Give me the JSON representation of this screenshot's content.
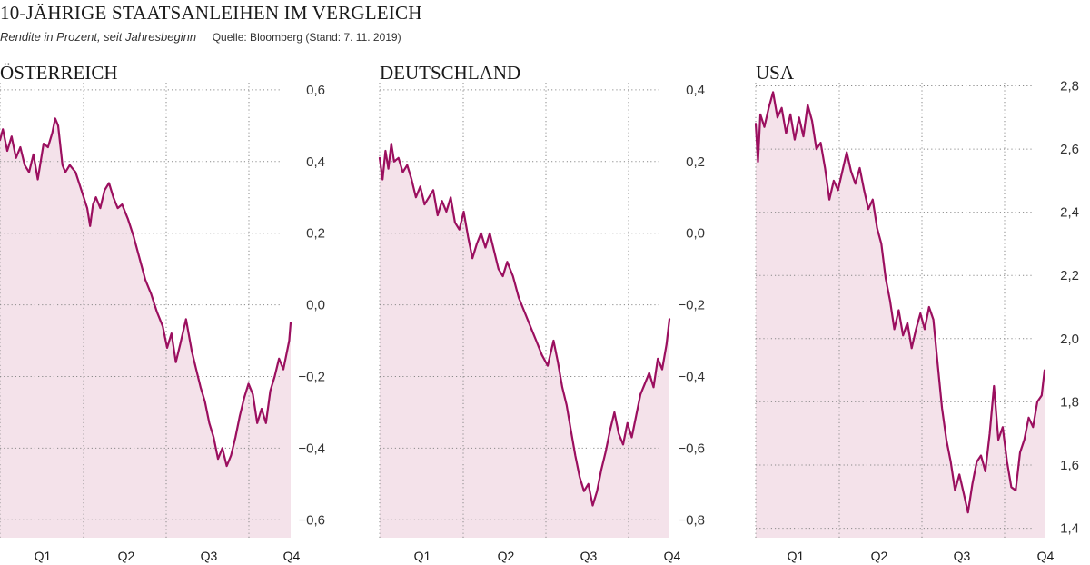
{
  "header": {
    "title": "10-JÄHRIGE STAATSANLEIHEN IM VERGLEICH",
    "subtitle": "Rendite in Prozent, seit Jahresbeginn",
    "source": "Quelle: Bloomberg (Stand: 7. 11. 2019)"
  },
  "colors": {
    "line": "#9b0f5f",
    "fill": "#f4e2ea",
    "grid": "#8a8a8a"
  },
  "chart_data": [
    {
      "type": "area",
      "title": "ÖSTERREICH",
      "xlabel": "",
      "ylabel": "Rendite in Prozent",
      "x_ticks": [
        "Q1",
        "Q2",
        "Q3",
        "Q4"
      ],
      "y_ticks": [
        "0,6",
        "0,4",
        "0,2",
        "0,0",
        "−0,2",
        "−0,4",
        "−0,6"
      ],
      "y_tick_values": [
        0.6,
        0.4,
        0.2,
        0.0,
        -0.2,
        -0.4,
        -0.6
      ],
      "ylim": [
        -0.65,
        0.62
      ],
      "xlim": [
        0,
        1
      ],
      "grid": true,
      "series": [
        {
          "name": "Österreich",
          "x": [
            0.0,
            0.01,
            0.025,
            0.04,
            0.055,
            0.07,
            0.085,
            0.1,
            0.115,
            0.13,
            0.15,
            0.165,
            0.18,
            0.19,
            0.2,
            0.215,
            0.225,
            0.24,
            0.26,
            0.28,
            0.3,
            0.31,
            0.32,
            0.33,
            0.345,
            0.36,
            0.375,
            0.39,
            0.405,
            0.42,
            0.44,
            0.46,
            0.48,
            0.5,
            0.52,
            0.54,
            0.56,
            0.575,
            0.59,
            0.605,
            0.62,
            0.64,
            0.66,
            0.675,
            0.69,
            0.705,
            0.72,
            0.735,
            0.75,
            0.765,
            0.78,
            0.795,
            0.81,
            0.825,
            0.84,
            0.855,
            0.87,
            0.885,
            0.9,
            0.915,
            0.93,
            0.945,
            0.96,
            0.975,
            0.985,
            0.995,
            1.0
          ],
          "values": [
            0.46,
            0.49,
            0.43,
            0.47,
            0.41,
            0.44,
            0.39,
            0.37,
            0.42,
            0.35,
            0.45,
            0.44,
            0.48,
            0.52,
            0.5,
            0.39,
            0.37,
            0.39,
            0.37,
            0.32,
            0.27,
            0.22,
            0.28,
            0.3,
            0.27,
            0.32,
            0.34,
            0.3,
            0.27,
            0.28,
            0.24,
            0.19,
            0.13,
            0.07,
            0.03,
            -0.02,
            -0.06,
            -0.12,
            -0.08,
            -0.16,
            -0.11,
            -0.04,
            -0.13,
            -0.18,
            -0.23,
            -0.27,
            -0.33,
            -0.37,
            -0.43,
            -0.4,
            -0.45,
            -0.42,
            -0.37,
            -0.31,
            -0.26,
            -0.22,
            -0.25,
            -0.33,
            -0.29,
            -0.33,
            -0.24,
            -0.2,
            -0.15,
            -0.18,
            -0.14,
            -0.1,
            -0.05
          ]
        }
      ]
    },
    {
      "type": "area",
      "title": "DEUTSCHLAND",
      "xlabel": "",
      "ylabel": "Rendite in Prozent",
      "x_ticks": [
        "Q1",
        "Q2",
        "Q3",
        "Q4"
      ],
      "y_ticks": [
        "0,4",
        "0,2",
        "0,0",
        "−0,2",
        "−0,4",
        "−0,6",
        "−0,8"
      ],
      "y_tick_values": [
        0.4,
        0.2,
        0.0,
        -0.2,
        -0.4,
        -0.6,
        -0.8
      ],
      "ylim": [
        -0.85,
        0.42
      ],
      "xlim": [
        0,
        1
      ],
      "grid": true,
      "series": [
        {
          "name": "Deutschland",
          "x": [
            0.0,
            0.01,
            0.02,
            0.03,
            0.04,
            0.05,
            0.065,
            0.08,
            0.095,
            0.11,
            0.125,
            0.14,
            0.155,
            0.17,
            0.185,
            0.2,
            0.215,
            0.23,
            0.245,
            0.26,
            0.275,
            0.29,
            0.305,
            0.32,
            0.335,
            0.35,
            0.365,
            0.38,
            0.395,
            0.41,
            0.425,
            0.44,
            0.46,
            0.48,
            0.5,
            0.52,
            0.54,
            0.56,
            0.58,
            0.6,
            0.615,
            0.63,
            0.645,
            0.66,
            0.675,
            0.69,
            0.705,
            0.72,
            0.735,
            0.75,
            0.765,
            0.78,
            0.795,
            0.81,
            0.825,
            0.84,
            0.855,
            0.87,
            0.885,
            0.9,
            0.915,
            0.93,
            0.945,
            0.96,
            0.975,
            0.99,
            1.0
          ],
          "values": [
            0.21,
            0.15,
            0.23,
            0.18,
            0.25,
            0.2,
            0.21,
            0.17,
            0.19,
            0.15,
            0.1,
            0.13,
            0.08,
            0.1,
            0.12,
            0.05,
            0.09,
            0.06,
            0.1,
            0.03,
            0.01,
            0.06,
            -0.01,
            -0.07,
            -0.03,
            0.0,
            -0.04,
            0.0,
            -0.05,
            -0.1,
            -0.12,
            -0.08,
            -0.12,
            -0.18,
            -0.22,
            -0.26,
            -0.3,
            -0.34,
            -0.37,
            -0.3,
            -0.36,
            -0.43,
            -0.48,
            -0.55,
            -0.62,
            -0.68,
            -0.72,
            -0.7,
            -0.76,
            -0.72,
            -0.66,
            -0.61,
            -0.55,
            -0.5,
            -0.56,
            -0.59,
            -0.53,
            -0.57,
            -0.51,
            -0.45,
            -0.42,
            -0.39,
            -0.43,
            -0.35,
            -0.38,
            -0.31,
            -0.24
          ]
        }
      ]
    },
    {
      "type": "area",
      "title": "USA",
      "xlabel": "",
      "ylabel": "Rendite in Prozent",
      "x_ticks": [
        "Q1",
        "Q2",
        "Q3",
        "Q4"
      ],
      "y_ticks": [
        "2,8",
        "2,6",
        "2,4",
        "2,2",
        "2,0",
        "1,8",
        "1,6",
        "1,4"
      ],
      "y_tick_values": [
        2.8,
        2.6,
        2.4,
        2.2,
        2.0,
        1.8,
        1.6,
        1.4
      ],
      "ylim": [
        1.37,
        2.81
      ],
      "xlim": [
        0,
        1
      ],
      "grid": true,
      "series": [
        {
          "name": "USA",
          "x": [
            0.0,
            0.008,
            0.016,
            0.03,
            0.045,
            0.06,
            0.075,
            0.09,
            0.105,
            0.12,
            0.135,
            0.15,
            0.165,
            0.18,
            0.195,
            0.21,
            0.225,
            0.24,
            0.255,
            0.27,
            0.285,
            0.3,
            0.315,
            0.33,
            0.345,
            0.36,
            0.375,
            0.39,
            0.405,
            0.42,
            0.435,
            0.45,
            0.465,
            0.48,
            0.495,
            0.51,
            0.525,
            0.54,
            0.555,
            0.57,
            0.585,
            0.6,
            0.615,
            0.63,
            0.645,
            0.66,
            0.675,
            0.69,
            0.705,
            0.72,
            0.735,
            0.75,
            0.765,
            0.78,
            0.795,
            0.81,
            0.825,
            0.84,
            0.855,
            0.87,
            0.885,
            0.9,
            0.915,
            0.93,
            0.945,
            0.96,
            0.975,
            0.99,
            1.0
          ],
          "values": [
            2.68,
            2.56,
            2.71,
            2.67,
            2.73,
            2.78,
            2.7,
            2.73,
            2.65,
            2.71,
            2.63,
            2.7,
            2.64,
            2.74,
            2.69,
            2.6,
            2.62,
            2.54,
            2.44,
            2.5,
            2.47,
            2.53,
            2.59,
            2.53,
            2.49,
            2.54,
            2.47,
            2.41,
            2.44,
            2.35,
            2.3,
            2.19,
            2.12,
            2.03,
            2.09,
            2.01,
            2.05,
            1.97,
            2.03,
            2.08,
            2.03,
            2.1,
            2.06,
            1.92,
            1.78,
            1.68,
            1.61,
            1.52,
            1.57,
            1.51,
            1.45,
            1.54,
            1.61,
            1.63,
            1.58,
            1.7,
            1.85,
            1.68,
            1.72,
            1.61,
            1.53,
            1.52,
            1.64,
            1.68,
            1.75,
            1.72,
            1.8,
            1.82,
            1.9
          ]
        }
      ]
    }
  ]
}
